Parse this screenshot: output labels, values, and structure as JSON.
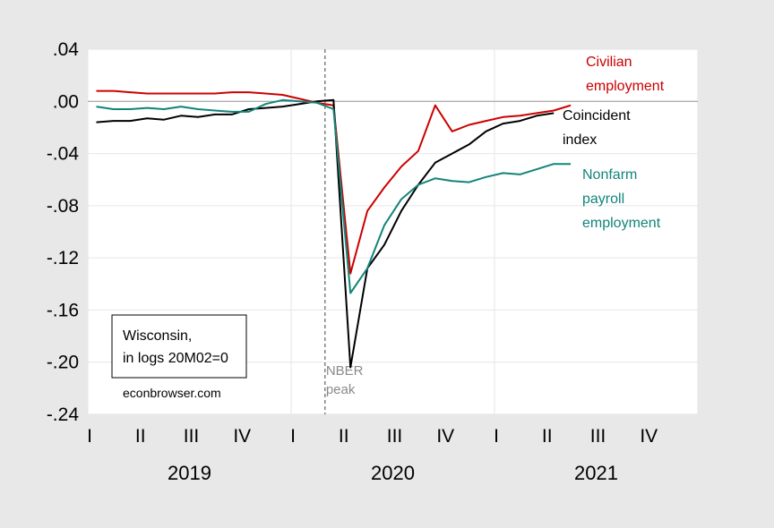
{
  "chart_data": {
    "type": "line",
    "x_unit": "month",
    "x_start": "2019-01",
    "x_end": "2021-12",
    "ylim": [
      -0.24,
      0.04
    ],
    "yticks": [
      0.04,
      0.0,
      -0.04,
      -0.08,
      -0.12,
      -0.16,
      -0.2,
      -0.24
    ],
    "ytick_labels": [
      ".04",
      ".00",
      "-.04",
      "-.08",
      "-.12",
      "-.16",
      "-.20",
      "-.24"
    ],
    "quarter_labels": [
      "I",
      "II",
      "III",
      "IV",
      "I",
      "II",
      "III",
      "IV",
      "I",
      "II",
      "III",
      "IV"
    ],
    "years": [
      "2019",
      "2020",
      "2021"
    ],
    "grid": true,
    "series": [
      {
        "name": "Civilian employment",
        "label_lines": [
          "Civilian",
          "employment"
        ],
        "color": "#cc0000",
        "x": [
          "2019-01",
          "2019-02",
          "2019-03",
          "2019-04",
          "2019-05",
          "2019-06",
          "2019-07",
          "2019-08",
          "2019-09",
          "2019-10",
          "2019-11",
          "2019-12",
          "2020-01",
          "2020-02",
          "2020-03",
          "2020-04",
          "2020-05",
          "2020-06",
          "2020-07",
          "2020-08",
          "2020-09",
          "2020-10",
          "2020-11",
          "2020-12",
          "2021-01",
          "2021-02",
          "2021-03",
          "2021-04",
          "2021-05"
        ],
        "values": [
          0.008,
          0.008,
          0.007,
          0.006,
          0.006,
          0.006,
          0.006,
          0.006,
          0.007,
          0.007,
          0.006,
          0.005,
          0.002,
          -0.001,
          -0.003,
          -0.132,
          -0.084,
          -0.066,
          -0.05,
          -0.038,
          -0.003,
          -0.023,
          -0.018,
          -0.015,
          -0.012,
          -0.011,
          -0.009,
          -0.007,
          -0.003
        ]
      },
      {
        "name": "Coincident index",
        "label_lines": [
          "Coincident",
          "index"
        ],
        "color": "#000000",
        "x": [
          "2019-01",
          "2019-02",
          "2019-03",
          "2019-04",
          "2019-05",
          "2019-06",
          "2019-07",
          "2019-08",
          "2019-09",
          "2019-10",
          "2019-11",
          "2019-12",
          "2020-01",
          "2020-02",
          "2020-03",
          "2020-04",
          "2020-05",
          "2020-06",
          "2020-07",
          "2020-08",
          "2020-09",
          "2020-10",
          "2020-11",
          "2020-12",
          "2021-01",
          "2021-02",
          "2021-03",
          "2021-04",
          "2021-05"
        ],
        "values": [
          -0.016,
          -0.015,
          -0.015,
          -0.013,
          -0.014,
          -0.011,
          -0.012,
          -0.01,
          -0.01,
          -0.006,
          -0.005,
          -0.004,
          -0.002,
          0.0,
          0.001,
          -0.204,
          -0.128,
          -0.11,
          -0.084,
          -0.064,
          -0.047,
          -0.04,
          -0.033,
          -0.023,
          -0.017,
          -0.015,
          -0.011,
          -0.009,
          null
        ]
      },
      {
        "name": "Nonfarm payroll employment",
        "label_lines": [
          "Nonfarm",
          "payroll",
          "employment"
        ],
        "color": "#12847a",
        "x": [
          "2019-01",
          "2019-02",
          "2019-03",
          "2019-04",
          "2019-05",
          "2019-06",
          "2019-07",
          "2019-08",
          "2019-09",
          "2019-10",
          "2019-11",
          "2019-12",
          "2020-01",
          "2020-02",
          "2020-03",
          "2020-04",
          "2020-05",
          "2020-06",
          "2020-07",
          "2020-08",
          "2020-09",
          "2020-10",
          "2020-11",
          "2020-12",
          "2021-01",
          "2021-02",
          "2021-03",
          "2021-04",
          "2021-05"
        ],
        "values": [
          -0.004,
          -0.006,
          -0.006,
          -0.005,
          -0.006,
          -0.004,
          -0.006,
          -0.007,
          -0.008,
          -0.008,
          -0.002,
          0.001,
          0.0,
          -0.001,
          -0.006,
          -0.147,
          -0.128,
          -0.095,
          -0.075,
          -0.064,
          -0.059,
          -0.061,
          -0.062,
          -0.058,
          -0.055,
          -0.056,
          -0.052,
          -0.048,
          -0.048
        ]
      }
    ],
    "nber_peak": {
      "x": "2020-02",
      "label_lines": [
        "NBER",
        "peak"
      ]
    },
    "annotation_box": {
      "line1": "Wisconsin,",
      "line2": "in logs 20M02=0"
    },
    "source": "econbrowser.com"
  }
}
